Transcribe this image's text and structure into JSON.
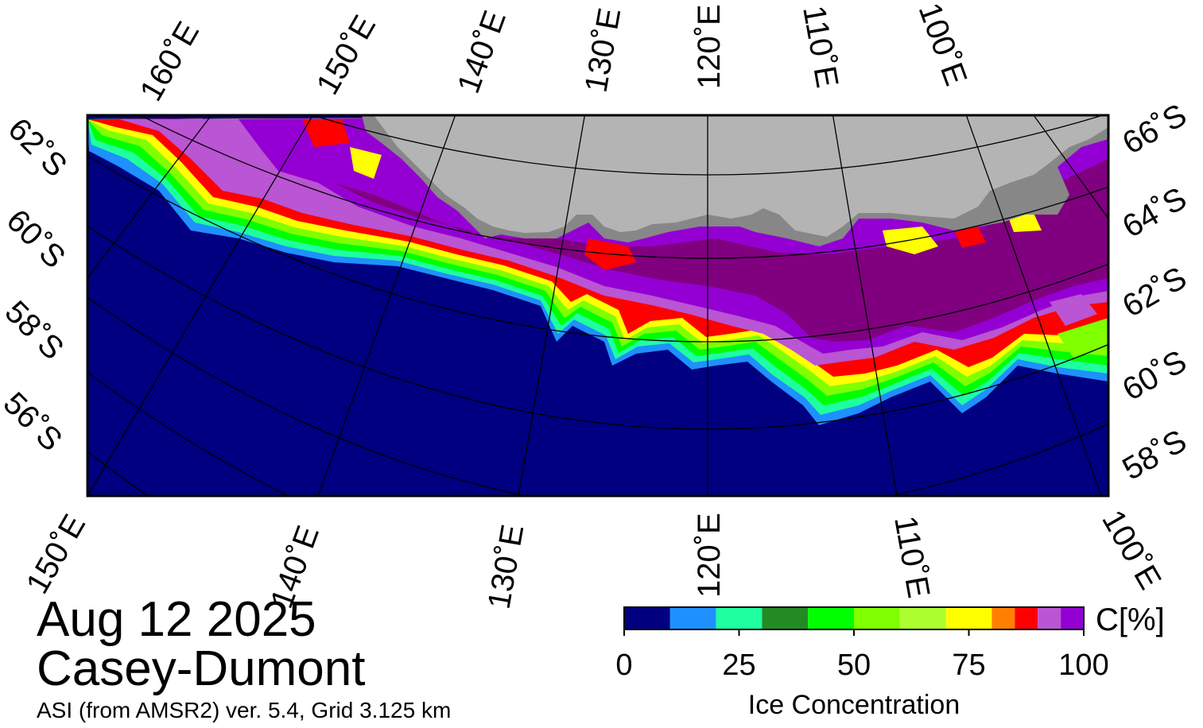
{
  "map": {
    "title_date": "Aug 12 2025",
    "region": "Casey-Dumont",
    "source": "ASI (from AMSR2) ver. 5.4,  Grid 3.125 km",
    "colors": {
      "ocean": "#000080",
      "land": "#b4b4b4",
      "ice_shelf": "#878787",
      "frame": "#000000",
      "graticule": "#000000"
    },
    "top_longitude_labels": [
      "160˚E",
      "150˚E",
      "140˚E",
      "130˚E",
      "120˚E",
      "110˚E",
      "100˚E"
    ],
    "bottom_longitude_labels": [
      "150˚E",
      "140˚E",
      "130˚E",
      "120˚E",
      "110˚E",
      "100˚E"
    ],
    "left_latitude_labels": [
      "62˚S",
      "60˚S",
      "58˚S",
      "56˚S"
    ],
    "right_latitude_labels": [
      "66˚S",
      "64˚S",
      "62˚S",
      "60˚S",
      "58˚S"
    ]
  },
  "colorbar": {
    "title": "Ice Concentration",
    "unit": "C[%]",
    "tick_labels": [
      "0",
      "25",
      "50",
      "75",
      "100"
    ],
    "ticks": [
      0,
      25,
      50,
      75,
      100
    ],
    "range": [
      0,
      100
    ],
    "bins": [
      {
        "from": 0,
        "to": 10,
        "color": "#000080"
      },
      {
        "from": 10,
        "to": 20,
        "color": "#1e90ff"
      },
      {
        "from": 20,
        "to": 30,
        "color": "#1effa0"
      },
      {
        "from": 30,
        "to": 40,
        "color": "#228b22"
      },
      {
        "from": 40,
        "to": 50,
        "color": "#00ff00"
      },
      {
        "from": 50,
        "to": 60,
        "color": "#7fff00"
      },
      {
        "from": 60,
        "to": 70,
        "color": "#adff2f"
      },
      {
        "from": 70,
        "to": 80,
        "color": "#ffff00"
      },
      {
        "from": 80,
        "to": 85,
        "color": "#ff8000"
      },
      {
        "from": 85,
        "to": 90,
        "color": "#ff0000"
      },
      {
        "from": 90,
        "to": 95,
        "color": "#ba55d3"
      },
      {
        "from": 95,
        "to": 100,
        "color": "#9400d3"
      }
    ],
    "ice_colors": {
      "consolidated": "#800080",
      "high": "#9400d3",
      "medium_high": "#ba55d3",
      "red": "#ff0000",
      "orange": "#ff8000",
      "yellow": "#ffff00",
      "green": "#00ff00",
      "lime": "#7fff00",
      "cyan": "#1effa0",
      "blue": "#1e90ff"
    }
  }
}
